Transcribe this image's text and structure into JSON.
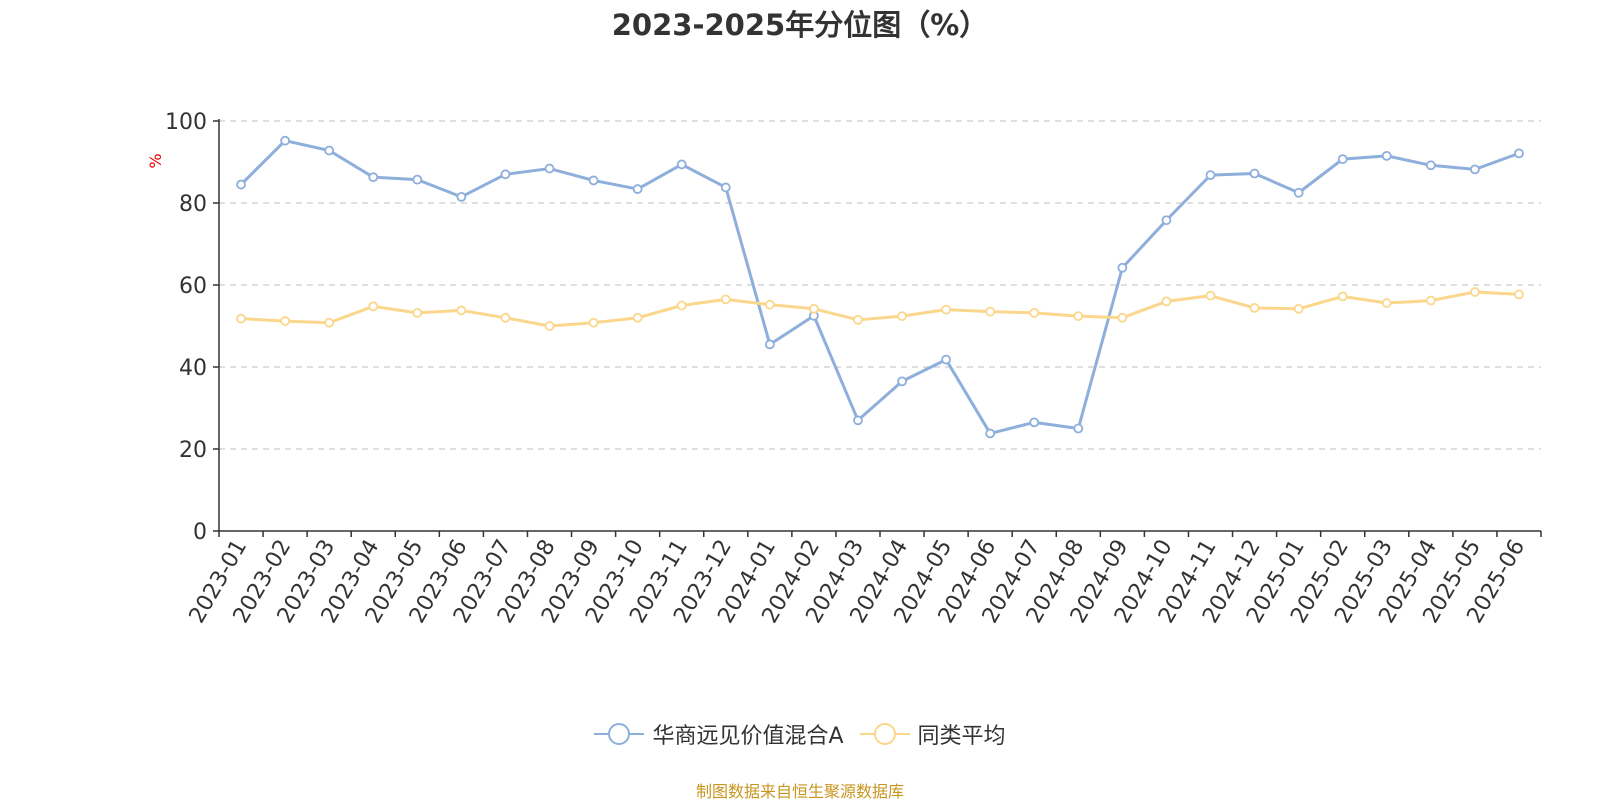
{
  "title": "2023-2025年分位图（%）",
  "source": "制图数据来自恒生聚源数据库",
  "chart_data": {
    "type": "line",
    "title": "2023-2025年分位图（%）",
    "ylabel": "%",
    "xlabel": "",
    "ylim": [
      0,
      100
    ],
    "yticks": [
      0,
      20,
      40,
      60,
      80,
      100
    ],
    "grid": true,
    "legend_position": "bottom",
    "categories": [
      "2023-01",
      "2023-02",
      "2023-03",
      "2023-04",
      "2023-05",
      "2023-06",
      "2023-07",
      "2023-08",
      "2023-09",
      "2023-10",
      "2023-11",
      "2023-12",
      "2024-01",
      "2024-02",
      "2024-03",
      "2024-04",
      "2024-05",
      "2024-06",
      "2024-07",
      "2024-08",
      "2024-09",
      "2024-10",
      "2024-11",
      "2024-12",
      "2025-01",
      "2025-02",
      "2025-03",
      "2025-04",
      "2025-05",
      "2025-06"
    ],
    "series": [
      {
        "name": "华商远见价值混合A",
        "color": "#8eaedb",
        "values": [
          84.5,
          95.2,
          92.8,
          86.3,
          85.7,
          81.5,
          87.0,
          88.4,
          85.5,
          83.4,
          89.4,
          83.8,
          45.5,
          52.5,
          27.0,
          36.5,
          41.8,
          23.8,
          26.5,
          25.0,
          64.2,
          75.8,
          86.8,
          87.2,
          82.5,
          90.7,
          91.5,
          89.2,
          88.2,
          92.1
        ]
      },
      {
        "name": "同类平均",
        "color": "#fad78c",
        "values": [
          51.8,
          51.2,
          50.8,
          54.8,
          53.2,
          53.8,
          52.0,
          50.0,
          50.8,
          52.0,
          55.0,
          56.5,
          55.2,
          54.2,
          51.5,
          52.4,
          54.0,
          53.5,
          53.2,
          52.4,
          52.0,
          56.0,
          57.4,
          54.4,
          54.2,
          57.2,
          55.6,
          56.2,
          58.3,
          57.7
        ]
      }
    ]
  }
}
